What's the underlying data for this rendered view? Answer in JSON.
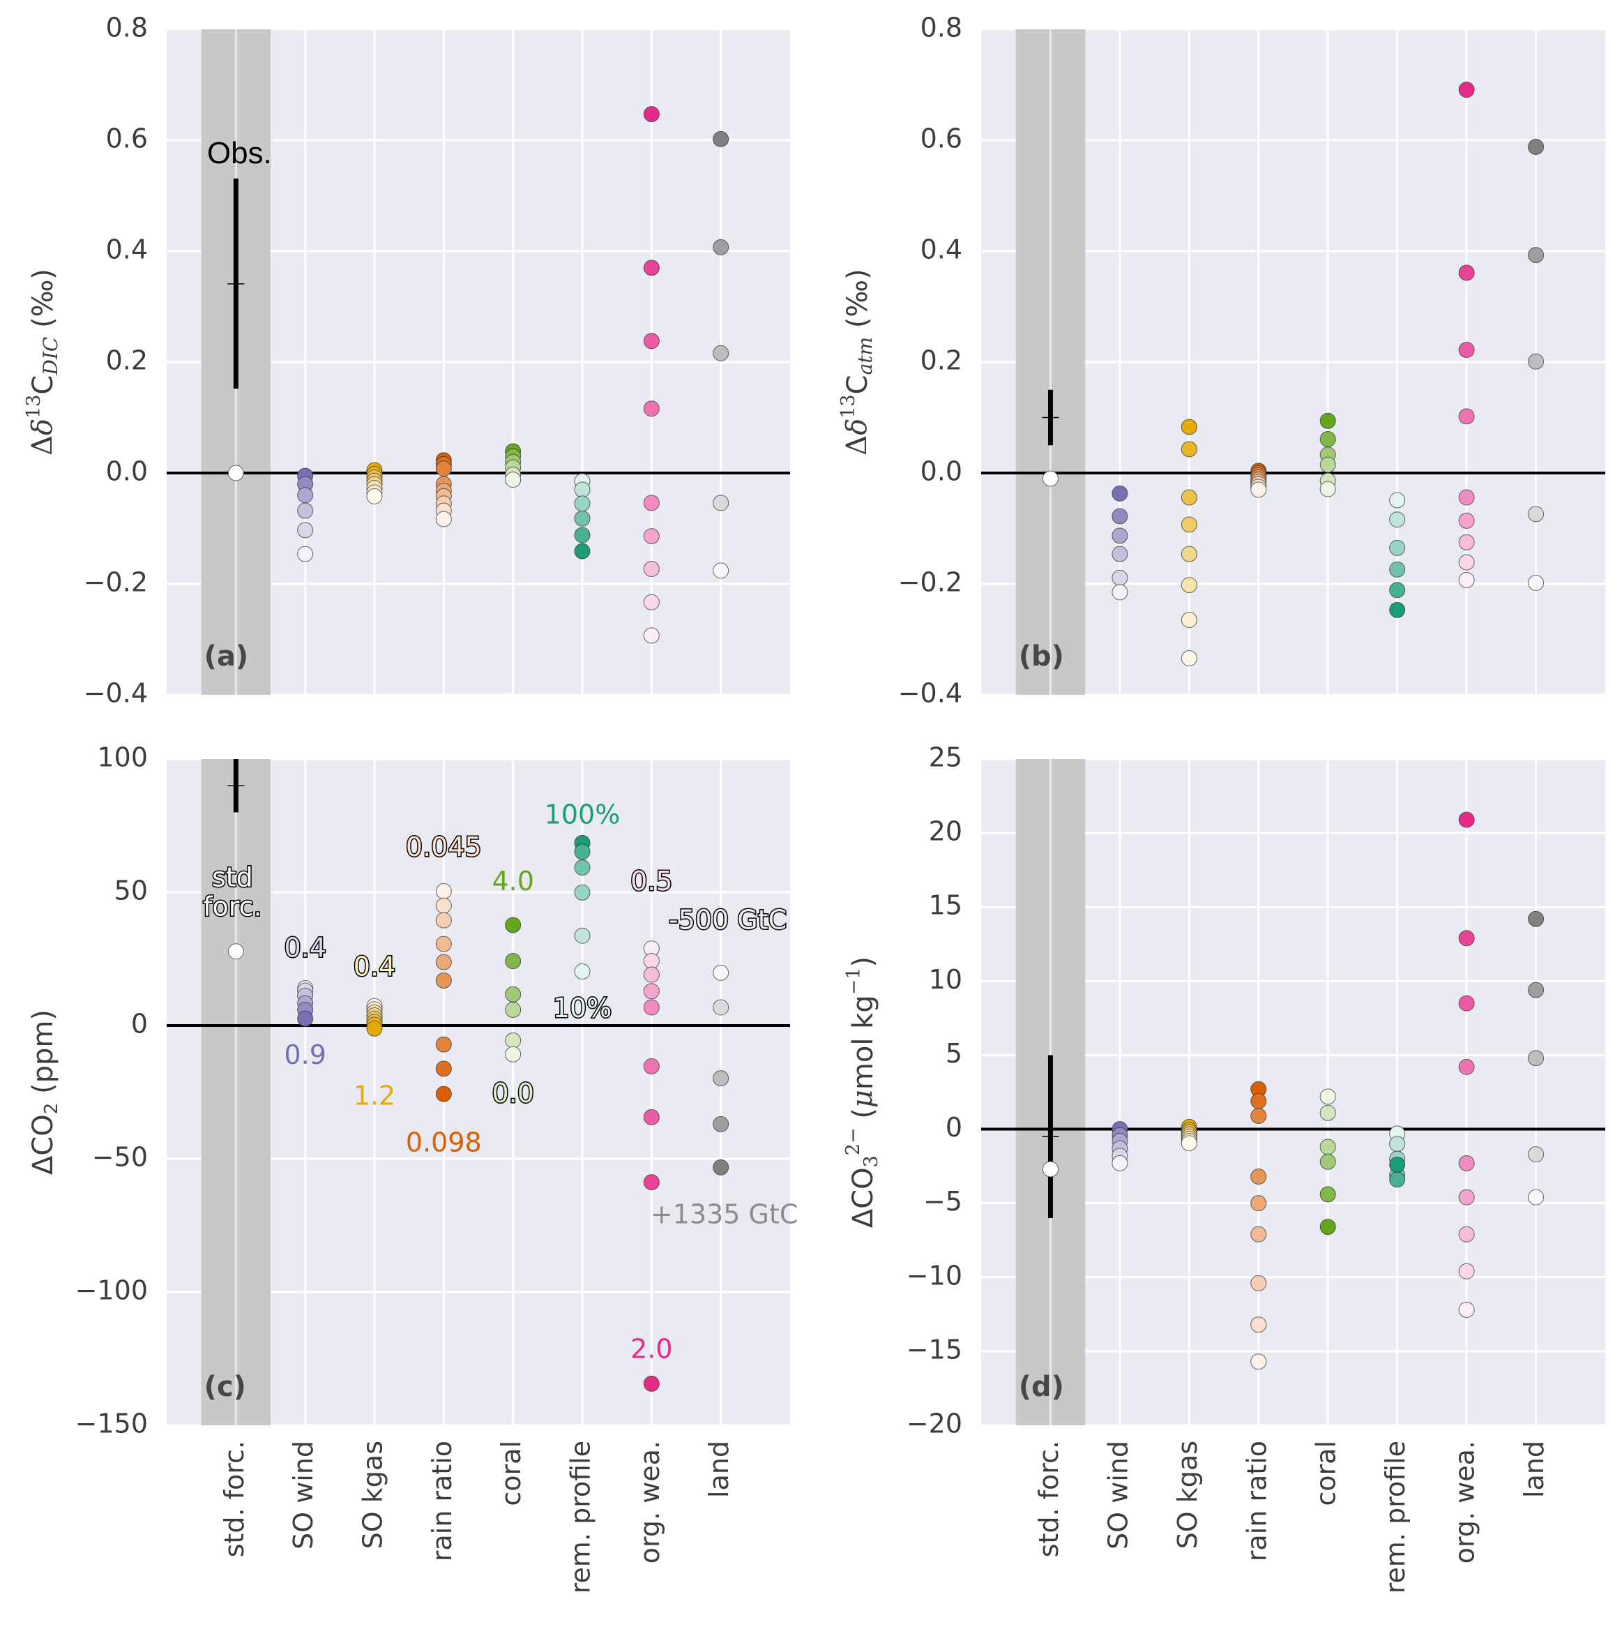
{
  "chart_data": [
    {
      "panel": "a",
      "type": "scatter",
      "panel_label": "(a)",
      "ylabel_parts": [
        "Δ",
        "δ",
        "13",
        "C",
        "DIC",
        " (‰)"
      ],
      "ylabel": "Δδ13C_DIC (‰)",
      "ylim": [
        -0.4,
        0.8
      ],
      "yticks": [
        -0.4,
        -0.2,
        0.0,
        0.2,
        0.4,
        0.6,
        0.8
      ],
      "ytick_labels": [
        "−0.4",
        "−0.2",
        "0.0",
        "0.2",
        "0.4",
        "0.6",
        "0.8"
      ],
      "xlim": [
        -1,
        8
      ],
      "categories": [
        "std. forc.",
        "SO wind",
        "SO kgas",
        "rain ratio",
        "coral",
        "rem. profile",
        "org. wea.",
        "land"
      ],
      "show_xlabels": false,
      "grid": true,
      "zero_line": true,
      "observation": {
        "label": "Obs.",
        "center": 0.341,
        "low": 0.152,
        "high": 0.531
      },
      "series": [
        {
          "name": "std. forc.",
          "values": [
            0.0
          ],
          "shades": [
            0.0
          ]
        },
        {
          "name": "SO wind",
          "values": [
            -0.005,
            -0.02,
            -0.04,
            -0.068,
            -0.103,
            -0.146
          ],
          "shades": [
            1.0,
            0.8,
            0.6,
            0.42,
            0.25,
            0.05
          ]
        },
        {
          "name": "SO kgas",
          "values": [
            0.005,
            -0.002,
            -0.008,
            -0.014,
            -0.02,
            -0.027,
            -0.035,
            -0.042
          ],
          "shades": [
            1.0,
            0.86,
            0.72,
            0.58,
            0.44,
            0.3,
            0.16,
            0.04
          ]
        },
        {
          "name": "rain ratio",
          "values": [
            0.023,
            0.016,
            0.008,
            -0.02,
            -0.032,
            -0.042,
            -0.055,
            -0.068,
            -0.083
          ],
          "shades": [
            1.0,
            0.88,
            0.76,
            0.64,
            0.52,
            0.4,
            0.28,
            0.16,
            0.04
          ]
        },
        {
          "name": "coral",
          "values": [
            0.039,
            0.03,
            0.02,
            0.01,
            -0.003,
            -0.012
          ],
          "shades": [
            1.0,
            0.8,
            0.6,
            0.42,
            0.25,
            0.08
          ]
        },
        {
          "name": "rem. profile",
          "values": [
            -0.015,
            -0.03,
            -0.055,
            -0.082,
            -0.112,
            -0.141
          ],
          "shades": [
            0.08,
            0.25,
            0.42,
            0.6,
            0.8,
            1.0
          ]
        },
        {
          "name": "org. wea.",
          "values": [
            0.647,
            0.37,
            0.238,
            0.116,
            -0.054,
            -0.114,
            -0.173,
            -0.233,
            -0.293
          ],
          "shades": [
            1.0,
            0.88,
            0.76,
            0.64,
            0.52,
            0.4,
            0.28,
            0.16,
            0.04
          ]
        },
        {
          "name": "land",
          "values": [
            0.602,
            0.407,
            0.216,
            -0.054,
            -0.176
          ],
          "shades": [
            1.0,
            0.75,
            0.5,
            0.25,
            0.02
          ]
        }
      ],
      "annotations": []
    },
    {
      "panel": "b",
      "type": "scatter",
      "panel_label": "(b)",
      "ylabel_parts": [
        "Δ",
        "δ",
        "13",
        "C",
        "atm",
        " (‰)"
      ],
      "ylabel": "Δδ13C_atm (‰)",
      "ylim": [
        -0.4,
        0.8
      ],
      "yticks": [
        -0.4,
        -0.2,
        0.0,
        0.2,
        0.4,
        0.6,
        0.8
      ],
      "ytick_labels": [
        "−0.4",
        "−0.2",
        "0.0",
        "0.2",
        "0.4",
        "0.6",
        "0.8"
      ],
      "xlim": [
        -1,
        8
      ],
      "categories": [
        "std. forc.",
        "SO wind",
        "SO kgas",
        "rain ratio",
        "coral",
        "rem. profile",
        "org. wea.",
        "land"
      ],
      "show_xlabels": false,
      "grid": true,
      "zero_line": true,
      "observation": {
        "label": "",
        "center": 0.1,
        "low": 0.05,
        "high": 0.15
      },
      "series": [
        {
          "name": "std. forc.",
          "values": [
            -0.01
          ],
          "shades": [
            0.0
          ]
        },
        {
          "name": "SO wind",
          "values": [
            -0.037,
            -0.078,
            -0.113,
            -0.146,
            -0.189,
            -0.215
          ],
          "shades": [
            1.0,
            0.8,
            0.6,
            0.42,
            0.25,
            0.05
          ]
        },
        {
          "name": "SO kgas",
          "values": [
            0.083,
            0.043,
            -0.044,
            -0.093,
            -0.146,
            -0.202,
            -0.265,
            -0.334
          ],
          "shades": [
            1.0,
            0.86,
            0.72,
            0.58,
            0.44,
            0.3,
            0.16,
            0.04
          ]
        },
        {
          "name": "rain ratio",
          "values": [
            0.004,
            0.0,
            -0.004,
            -0.008,
            -0.012,
            -0.016,
            -0.02,
            -0.025,
            -0.03
          ],
          "shades": [
            1.0,
            0.88,
            0.76,
            0.64,
            0.52,
            0.4,
            0.28,
            0.16,
            0.04
          ]
        },
        {
          "name": "coral",
          "values": [
            0.094,
            0.061,
            0.033,
            0.015,
            -0.014,
            -0.029
          ],
          "shades": [
            1.0,
            0.8,
            0.6,
            0.42,
            0.25,
            0.08
          ]
        },
        {
          "name": "rem. profile",
          "values": [
            -0.049,
            -0.084,
            -0.135,
            -0.174,
            -0.211,
            -0.247
          ],
          "shades": [
            0.08,
            0.25,
            0.42,
            0.6,
            0.8,
            1.0
          ]
        },
        {
          "name": "org. wea.",
          "values": [
            0.691,
            0.361,
            0.222,
            0.102,
            -0.044,
            -0.086,
            -0.125,
            -0.161,
            -0.193
          ],
          "shades": [
            1.0,
            0.88,
            0.76,
            0.64,
            0.52,
            0.4,
            0.28,
            0.16,
            0.04
          ]
        },
        {
          "name": "land",
          "values": [
            0.588,
            0.393,
            0.201,
            -0.074,
            -0.198
          ],
          "shades": [
            1.0,
            0.75,
            0.5,
            0.25,
            0.02
          ]
        }
      ],
      "annotations": []
    },
    {
      "panel": "c",
      "type": "scatter",
      "panel_label": "(c)",
      "ylabel_parts": [
        "ΔCO",
        "2",
        " (ppm)"
      ],
      "ylabel": "ΔCO2 (ppm)",
      "ylim": [
        -150,
        100
      ],
      "yticks": [
        -150,
        -100,
        -50,
        0,
        50,
        100
      ],
      "ytick_labels": [
        "−150",
        "−100",
        "−50",
        "0",
        "50",
        "100"
      ],
      "xlim": [
        -1,
        8
      ],
      "categories": [
        "std. forc.",
        "SO wind",
        "SO kgas",
        "rain ratio",
        "coral",
        "rem. profile",
        "org. wea.",
        "land"
      ],
      "show_xlabels": true,
      "grid": true,
      "zero_line": true,
      "observation": {
        "label": "",
        "center": 90,
        "low": 80,
        "high": 100
      },
      "series": [
        {
          "name": "std. forc.",
          "values": [
            27.8
          ],
          "shades": [
            0.0
          ]
        },
        {
          "name": "SO wind",
          "values": [
            14.0,
            13.1,
            11.2,
            8.4,
            5.9,
            2.6
          ],
          "shades": [
            0.05,
            0.25,
            0.42,
            0.6,
            0.8,
            1.0
          ]
        },
        {
          "name": "SO kgas",
          "values": [
            7.3,
            6.1,
            4.9,
            3.8,
            2.6,
            1.4,
            0.3,
            -1.1
          ],
          "shades": [
            0.04,
            0.16,
            0.3,
            0.44,
            0.58,
            0.72,
            0.86,
            1.0
          ]
        },
        {
          "name": "rain ratio",
          "values": [
            50.4,
            45.0,
            39.5,
            30.6,
            23.8,
            16.9,
            -7.1,
            -16.2,
            -25.7
          ],
          "shades": [
            0.04,
            0.16,
            0.28,
            0.4,
            0.52,
            0.64,
            0.76,
            0.88,
            1.0
          ]
        },
        {
          "name": "coral",
          "values": [
            37.7,
            24.2,
            11.7,
            5.9,
            -5.6,
            -10.8
          ],
          "shades": [
            1.0,
            0.8,
            0.6,
            0.42,
            0.25,
            0.08
          ]
        },
        {
          "name": "rem. profile",
          "values": [
            68.5,
            65.2,
            59.3,
            49.9,
            33.7,
            20.3
          ],
          "shades": [
            1.0,
            0.8,
            0.6,
            0.42,
            0.25,
            0.08
          ]
        },
        {
          "name": "org. wea.",
          "values": [
            28.9,
            24.2,
            19.1,
            12.9,
            6.8,
            -15.3,
            -34.4,
            -58.8,
            -134.4
          ],
          "shades": [
            0.04,
            0.16,
            0.28,
            0.4,
            0.52,
            0.64,
            0.76,
            0.88,
            1.0
          ]
        },
        {
          "name": "land",
          "values": [
            19.8,
            6.8,
            -19.8,
            -37.0,
            -53.2
          ],
          "shades": [
            0.02,
            0.25,
            0.5,
            0.75,
            1.0
          ]
        }
      ],
      "annotations": [
        {
          "text": "std",
          "x": -0.05,
          "y": 55,
          "style": "outlined",
          "fill": "#ffffff"
        },
        {
          "text": "forc.",
          "x": -0.05,
          "y": 44,
          "style": "outlined",
          "fill": "#ffffff"
        },
        {
          "text": "0.4",
          "x": 1,
          "y": 28.5,
          "style": "outlined",
          "fill": "#d9d8ec"
        },
        {
          "text": "0.9",
          "x": 1,
          "y": -11.7,
          "style": "plain",
          "fill": "#7570b3"
        },
        {
          "text": "0.4",
          "x": 2,
          "y": 21.5,
          "style": "outlined",
          "fill": "#fdf0c4"
        },
        {
          "text": "1.2",
          "x": 2,
          "y": -27,
          "style": "plain",
          "fill": "#e6ab02"
        },
        {
          "text": "0.045",
          "x": 3,
          "y": 66.4,
          "style": "outlined",
          "fill": "#fde3cf"
        },
        {
          "text": "0.098",
          "x": 3,
          "y": -44.5,
          "style": "plain",
          "fill": "#d95f02"
        },
        {
          "text": "4.0",
          "x": 4,
          "y": 53.5,
          "style": "plain",
          "fill": "#66a61e"
        },
        {
          "text": "0.0",
          "x": 4,
          "y": -26,
          "style": "outlined",
          "fill": "#dcefc8"
        },
        {
          "text": "100%",
          "x": 5,
          "y": 78.5,
          "style": "plain",
          "fill": "#1b9e77"
        },
        {
          "text": "10%",
          "x": 5,
          "y": 5.9,
          "style": "outlined",
          "fill": "#e3f6ef"
        },
        {
          "text": "0.5",
          "x": 6,
          "y": 53.5,
          "style": "outlined",
          "fill": "#fcdbec"
        },
        {
          "text": "2.0",
          "x": 6,
          "y": -122,
          "style": "plain",
          "fill": "#e7298a"
        },
        {
          "text": "-500 GtC",
          "x": 7.1,
          "y": 39,
          "style": "outlined",
          "fill": "#ececec"
        },
        {
          "text": "+1335 GtC",
          "x": 7.05,
          "y": -71.5,
          "style": "plain",
          "fill": "#8c8c8c"
        }
      ]
    },
    {
      "panel": "d",
      "type": "scatter",
      "panel_label": "(d)",
      "ylabel_parts": [
        "ΔCO",
        "3",
        "2−",
        "  (",
        "μ",
        "mol kg",
        "−1",
        ")"
      ],
      "ylabel": "ΔCO3^2− (μmol kg^−1)",
      "ylim": [
        -20,
        25
      ],
      "yticks": [
        -20,
        -15,
        -10,
        -5,
        0,
        5,
        10,
        15,
        20,
        25
      ],
      "ytick_labels": [
        "−20",
        "−15",
        "−10",
        "−5",
        "0",
        "5",
        "10",
        "15",
        "20",
        "25"
      ],
      "xlim": [
        -1,
        8
      ],
      "categories": [
        "std. forc.",
        "SO wind",
        "SO kgas",
        "rain ratio",
        "coral",
        "rem. profile",
        "org. wea.",
        "land"
      ],
      "show_xlabels": true,
      "grid": true,
      "zero_line": true,
      "observation": {
        "label": "",
        "center": -0.5,
        "low": -6.0,
        "high": 5.0
      },
      "series": [
        {
          "name": "std. forc.",
          "values": [
            -2.7
          ],
          "shades": [
            0.0
          ]
        },
        {
          "name": "SO wind",
          "values": [
            0.0,
            -0.4,
            -0.8,
            -1.3,
            -1.8,
            -2.3
          ],
          "shades": [
            1.0,
            0.8,
            0.6,
            0.42,
            0.25,
            0.05
          ]
        },
        {
          "name": "SO kgas",
          "values": [
            0.15,
            -0.05,
            -0.2,
            -0.35,
            -0.5,
            -0.65,
            -0.8,
            -0.95
          ],
          "shades": [
            1.0,
            0.86,
            0.72,
            0.58,
            0.44,
            0.3,
            0.16,
            0.04
          ]
        },
        {
          "name": "rain ratio",
          "values": [
            2.7,
            1.9,
            0.9,
            -3.2,
            -5.0,
            -7.1,
            -10.4,
            -13.2,
            -15.7
          ],
          "shades": [
            1.0,
            0.88,
            0.76,
            0.64,
            0.52,
            0.4,
            0.28,
            0.16,
            0.04
          ]
        },
        {
          "name": "coral",
          "values": [
            2.2,
            1.1,
            -1.2,
            -2.2,
            -4.4,
            -6.6
          ],
          "shades": [
            0.08,
            0.25,
            0.42,
            0.6,
            0.8,
            1.0
          ]
        },
        {
          "name": "rem. profile",
          "values": [
            -0.3,
            -1.0,
            -2.0,
            -3.1,
            -3.4,
            -2.4
          ],
          "shades": [
            0.08,
            0.25,
            0.42,
            0.6,
            0.8,
            1.0
          ]
        },
        {
          "name": "org. wea.",
          "values": [
            20.9,
            12.9,
            8.5,
            4.2,
            -2.3,
            -4.6,
            -7.1,
            -9.6,
            -12.2
          ],
          "shades": [
            1.0,
            0.88,
            0.76,
            0.64,
            0.52,
            0.4,
            0.28,
            0.16,
            0.04
          ]
        },
        {
          "name": "land",
          "values": [
            14.2,
            9.4,
            4.8,
            -1.7,
            -4.6
          ],
          "shades": [
            1.0,
            0.75,
            0.5,
            0.25,
            0.02
          ]
        }
      ],
      "annotations": []
    }
  ],
  "series_colors": {
    "std. forc.": "#ffffff",
    "SO wind": "#7570b3",
    "SO kgas": "#e6ab02",
    "rain ratio": "#d95f02",
    "coral": "#66a61e",
    "rem. profile": "#1b9e77",
    "org. wea.": "#e7298a",
    "land": "#808080"
  },
  "style_colors": {
    "axes_background": "#eaeaf2",
    "grid": "#ffffff",
    "reference_band": "#c8c8c8",
    "zero_line": "#000000"
  }
}
